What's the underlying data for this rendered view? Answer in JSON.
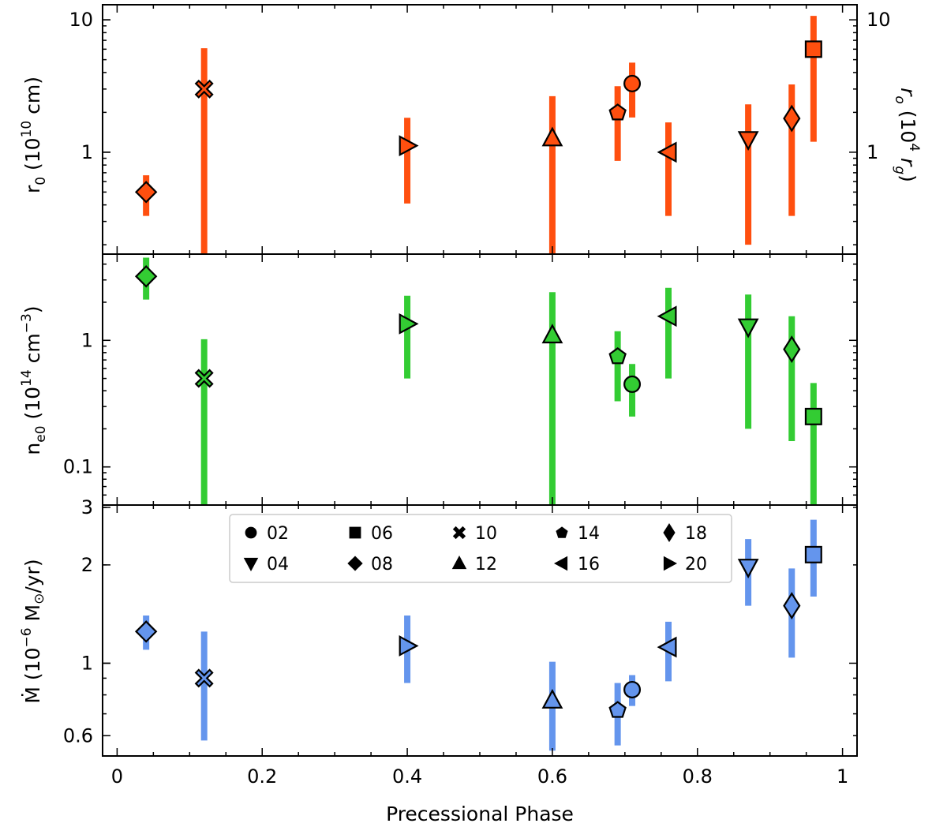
{
  "chart_data": {
    "type": "scatter",
    "xlabel": "Precessional Phase",
    "xlim": [
      -0.02,
      1.02
    ],
    "x_ticks": [
      {
        "value": 0,
        "label": "0"
      },
      {
        "value": 0.2,
        "label": "0.2"
      },
      {
        "value": 0.4,
        "label": "0.4"
      },
      {
        "value": 0.6,
        "label": "0.6"
      },
      {
        "value": 0.8,
        "label": "0.8"
      },
      {
        "value": 1.0,
        "label": "1"
      }
    ],
    "markers": {
      "02": "circle",
      "04": "triangle-down",
      "06": "square",
      "08": "diamond",
      "10": "x",
      "12": "triangle-up",
      "14": "pentagon",
      "16": "triangle-left",
      "18": "thin-diamond",
      "20": "triangle-right"
    },
    "legend": {
      "location": "upper center of bottom panel",
      "entries": [
        "02",
        "04",
        "06",
        "08",
        "10",
        "12",
        "14",
        "16",
        "18",
        "20"
      ]
    },
    "panels": [
      {
        "id": "r0",
        "color": "#ff4f0f",
        "ylabel": "r0 (10^10 cm)",
        "ylabel_main": "r",
        "ylabel_sub": "0",
        "ylabel_pre": " (10",
        "ylabel_sup": "10",
        "ylabel_post": " cm)",
        "ylabel_right_main": "r",
        "ylabel_right_sub": "o",
        "ylabel_right_pre": " (10",
        "ylabel_right_sup": "4",
        "ylabel_right_mid": " r",
        "ylabel_right_sub2": "g",
        "ylabel_right_post": ")",
        "yscale": "log",
        "ylim": [
          0.17,
          13
        ],
        "y_ticks": [
          {
            "value": 1,
            "label": "1"
          },
          {
            "value": 10,
            "label": "10"
          }
        ],
        "right_ylim": [
          0.17,
          13
        ],
        "right_y_ticks": [
          {
            "value": 1,
            "label": "1"
          },
          {
            "value": 10,
            "label": "10"
          }
        ],
        "points": [
          {
            "obs": "08",
            "phase": 0.04,
            "value": 0.5,
            "err_lo": 0.33,
            "err_hi": 0.67
          },
          {
            "obs": "10",
            "phase": 0.12,
            "value": 3.0,
            "err_lo": 0.17,
            "err_hi": 6.1
          },
          {
            "obs": "20",
            "phase": 0.4,
            "value": 1.12,
            "err_lo": 0.41,
            "err_hi": 1.82
          },
          {
            "obs": "12",
            "phase": 0.6,
            "value": 1.28,
            "err_lo": 0.17,
            "err_hi": 2.65
          },
          {
            "obs": "14",
            "phase": 0.69,
            "value": 2.0,
            "err_lo": 0.86,
            "err_hi": 3.15
          },
          {
            "obs": "02",
            "phase": 0.71,
            "value": 3.3,
            "err_lo": 1.83,
            "err_hi": 4.75
          },
          {
            "obs": "16",
            "phase": 0.76,
            "value": 1.0,
            "err_lo": 0.33,
            "err_hi": 1.68
          },
          {
            "obs": "04",
            "phase": 0.87,
            "value": 1.25,
            "err_lo": 0.2,
            "err_hi": 2.3
          },
          {
            "obs": "18",
            "phase": 0.93,
            "value": 1.8,
            "err_lo": 0.33,
            "err_hi": 3.25
          },
          {
            "obs": "06",
            "phase": 0.96,
            "value": 6.0,
            "err_lo": 1.2,
            "err_hi": 10.7
          }
        ]
      },
      {
        "id": "ne0",
        "color": "#33cc33",
        "ylabel": "ne0 (10^14 cm^-3)",
        "ylabel_main": "n",
        "ylabel_sub": "e0",
        "ylabel_pre": " (10",
        "ylabel_sup": "14",
        "ylabel_post": " cm",
        "ylabel_sup2": "−3",
        "ylabel_post2": ")",
        "yscale": "log",
        "ylim": [
          0.05,
          4.8
        ],
        "y_ticks": [
          {
            "value": 0.1,
            "label": "0.1"
          },
          {
            "value": 1,
            "label": "1"
          }
        ],
        "points": [
          {
            "obs": "08",
            "phase": 0.04,
            "value": 3.2,
            "err_lo": 2.1,
            "err_hi": 4.5
          },
          {
            "obs": "10",
            "phase": 0.12,
            "value": 0.5,
            "err_lo": 0.05,
            "err_hi": 1.02
          },
          {
            "obs": "20",
            "phase": 0.4,
            "value": 1.35,
            "err_lo": 0.5,
            "err_hi": 2.25
          },
          {
            "obs": "12",
            "phase": 0.6,
            "value": 1.1,
            "err_lo": 0.05,
            "err_hi": 2.4
          },
          {
            "obs": "14",
            "phase": 0.69,
            "value": 0.75,
            "err_lo": 0.33,
            "err_hi": 1.18
          },
          {
            "obs": "02",
            "phase": 0.71,
            "value": 0.45,
            "err_lo": 0.25,
            "err_hi": 0.65
          },
          {
            "obs": "16",
            "phase": 0.76,
            "value": 1.55,
            "err_lo": 0.5,
            "err_hi": 2.6
          },
          {
            "obs": "04",
            "phase": 0.87,
            "value": 1.28,
            "err_lo": 0.2,
            "err_hi": 2.3
          },
          {
            "obs": "18",
            "phase": 0.93,
            "value": 0.85,
            "err_lo": 0.16,
            "err_hi": 1.55
          },
          {
            "obs": "06",
            "phase": 0.96,
            "value": 0.25,
            "err_lo": 0.05,
            "err_hi": 0.46
          }
        ]
      },
      {
        "id": "mdot",
        "color": "#6495ed",
        "ylabel": "Ṁ (10^-6 M⊙/yr)",
        "ylabel_main": "Ṁ",
        "ylabel_pre": " (10",
        "ylabel_sup": "−6",
        "ylabel_post": " M",
        "ylabel_sub": "⊙",
        "ylabel_post2": "/yr)",
        "yscale": "log",
        "ylim": [
          0.52,
          3.05
        ],
        "y_ticks": [
          {
            "value": 0.6,
            "label": "0.6"
          },
          {
            "value": 1,
            "label": "1"
          },
          {
            "value": 2,
            "label": "2"
          },
          {
            "value": 3,
            "label": "3"
          }
        ],
        "points": [
          {
            "obs": "08",
            "phase": 0.04,
            "value": 1.25,
            "err_lo": 1.1,
            "err_hi": 1.4
          },
          {
            "obs": "10",
            "phase": 0.12,
            "value": 0.9,
            "err_lo": 0.58,
            "err_hi": 1.25
          },
          {
            "obs": "20",
            "phase": 0.4,
            "value": 1.13,
            "err_lo": 0.87,
            "err_hi": 1.4
          },
          {
            "obs": "12",
            "phase": 0.6,
            "value": 0.77,
            "err_lo": 0.54,
            "err_hi": 1.01
          },
          {
            "obs": "14",
            "phase": 0.69,
            "value": 0.72,
            "err_lo": 0.56,
            "err_hi": 0.87
          },
          {
            "obs": "02",
            "phase": 0.71,
            "value": 0.83,
            "err_lo": 0.74,
            "err_hi": 0.92
          },
          {
            "obs": "16",
            "phase": 0.76,
            "value": 1.12,
            "err_lo": 0.88,
            "err_hi": 1.34
          },
          {
            "obs": "04",
            "phase": 0.87,
            "value": 1.97,
            "err_lo": 1.5,
            "err_hi": 2.4
          },
          {
            "obs": "18",
            "phase": 0.93,
            "value": 1.5,
            "err_lo": 1.04,
            "err_hi": 1.95
          },
          {
            "obs": "06",
            "phase": 0.96,
            "value": 2.15,
            "err_lo": 1.6,
            "err_hi": 2.75
          }
        ]
      }
    ]
  }
}
